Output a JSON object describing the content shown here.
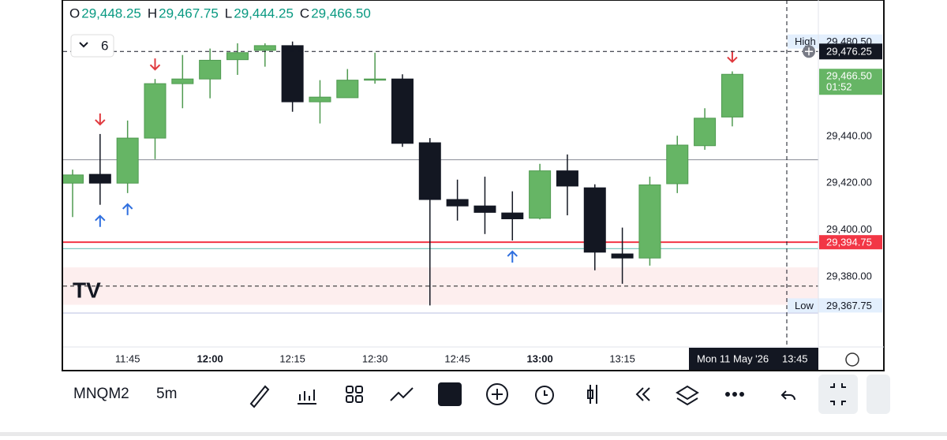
{
  "chart_data": {
    "type": "candlestick",
    "ohlc_legend": [
      {
        "key": "O",
        "value": "29,448.25"
      },
      {
        "key": "H",
        "value": "29,467.75"
      },
      {
        "key": "L",
        "value": "29,444.25"
      },
      {
        "key": "C",
        "value": "29,466.50"
      }
    ],
    "indicator_count": "6",
    "x": [
      null,
      null,
      "11:45",
      null,
      null,
      "12:00",
      null,
      null,
      "12:15",
      null,
      null,
      "12:30",
      null,
      null,
      "12:45",
      null,
      null,
      "13:00",
      null,
      null,
      "13:15",
      null,
      null,
      null,
      null
    ],
    "open": [
      29420,
      29423.75,
      29420,
      29439.25,
      29462.5,
      29464.5,
      29472.75,
      29476.75,
      29478.75,
      29454.75,
      29456.5,
      29464,
      29464.5,
      29437.25,
      29413,
      29410.25,
      29407.25,
      29405,
      29425.25,
      29418,
      29389.75,
      29388,
      29419.75,
      29436,
      29448.25
    ],
    "high": [
      29425.75,
      29441,
      29446.75,
      29464.5,
      29474.75,
      29477.5,
      29479.75,
      29479.75,
      29480.5,
      29464,
      29468.75,
      29475.75,
      29466.5,
      29439.25,
      29421.5,
      29422.75,
      29416.5,
      29428.25,
      29432.25,
      29419.5,
      29401,
      29422.75,
      29440.25,
      29452,
      29467.75
    ],
    "low": [
      29405.5,
      29410.75,
      29415.75,
      29430.25,
      29452,
      29456.25,
      29466.25,
      29469.75,
      29450.5,
      29445.5,
      29456.5,
      29462.5,
      29435.5,
      29367.75,
      29404,
      29398.25,
      29395.5,
      29404.5,
      29406.25,
      29382.75,
      29377,
      29384.75,
      29415.75,
      29434.25,
      29444.25
    ],
    "close": [
      29423.5,
      29420,
      29439.25,
      29462.5,
      29464.5,
      29472.5,
      29475.75,
      29478.75,
      29454.75,
      29456.75,
      29464,
      29464.5,
      29437,
      29413,
      29410.25,
      29407.5,
      29404.75,
      29425.25,
      29418.75,
      29390.5,
      29388,
      29419.25,
      29436.25,
      29447.75,
      29466.5
    ],
    "up_color": "#66b565",
    "down_color": "#131722",
    "ylim": [
      29350,
      29498.25
    ],
    "yticks": [
      {
        "value": 29380,
        "label": "29,380.00"
      },
      {
        "value": 29400,
        "label": "29,400.00"
      },
      {
        "value": 29420,
        "label": "29,420.00"
      },
      {
        "value": 29440,
        "label": "29,440.00"
      }
    ],
    "high_marker": {
      "text": "High",
      "value": 29480.5,
      "label": "29,480.50"
    },
    "low_marker": {
      "text": "Low",
      "value": 29367.75,
      "label": "29,367.75"
    },
    "crosshair": {
      "value": 29476.25,
      "label": "29,476.25",
      "time": "Mon 11 May '26",
      "clock": "13:45"
    },
    "last_price": {
      "label": "29,466.50",
      "countdown": "01:52"
    },
    "levels": [
      {
        "value": 29394.75,
        "label": "29,394.75",
        "color": "#f23645"
      }
    ],
    "lines": [
      {
        "value": 29430,
        "color": "#9598a1"
      },
      {
        "value": 29392,
        "color": "#7fc8c0"
      },
      {
        "value": 29376,
        "color": "#333333",
        "dashed": true
      },
      {
        "value": 29364.5,
        "color": "#c8cce8"
      }
    ],
    "zone": {
      "from": 29368,
      "to": 29384,
      "color": "#fdeeee"
    },
    "symbol": "MNQM2",
    "interval": "5m"
  }
}
